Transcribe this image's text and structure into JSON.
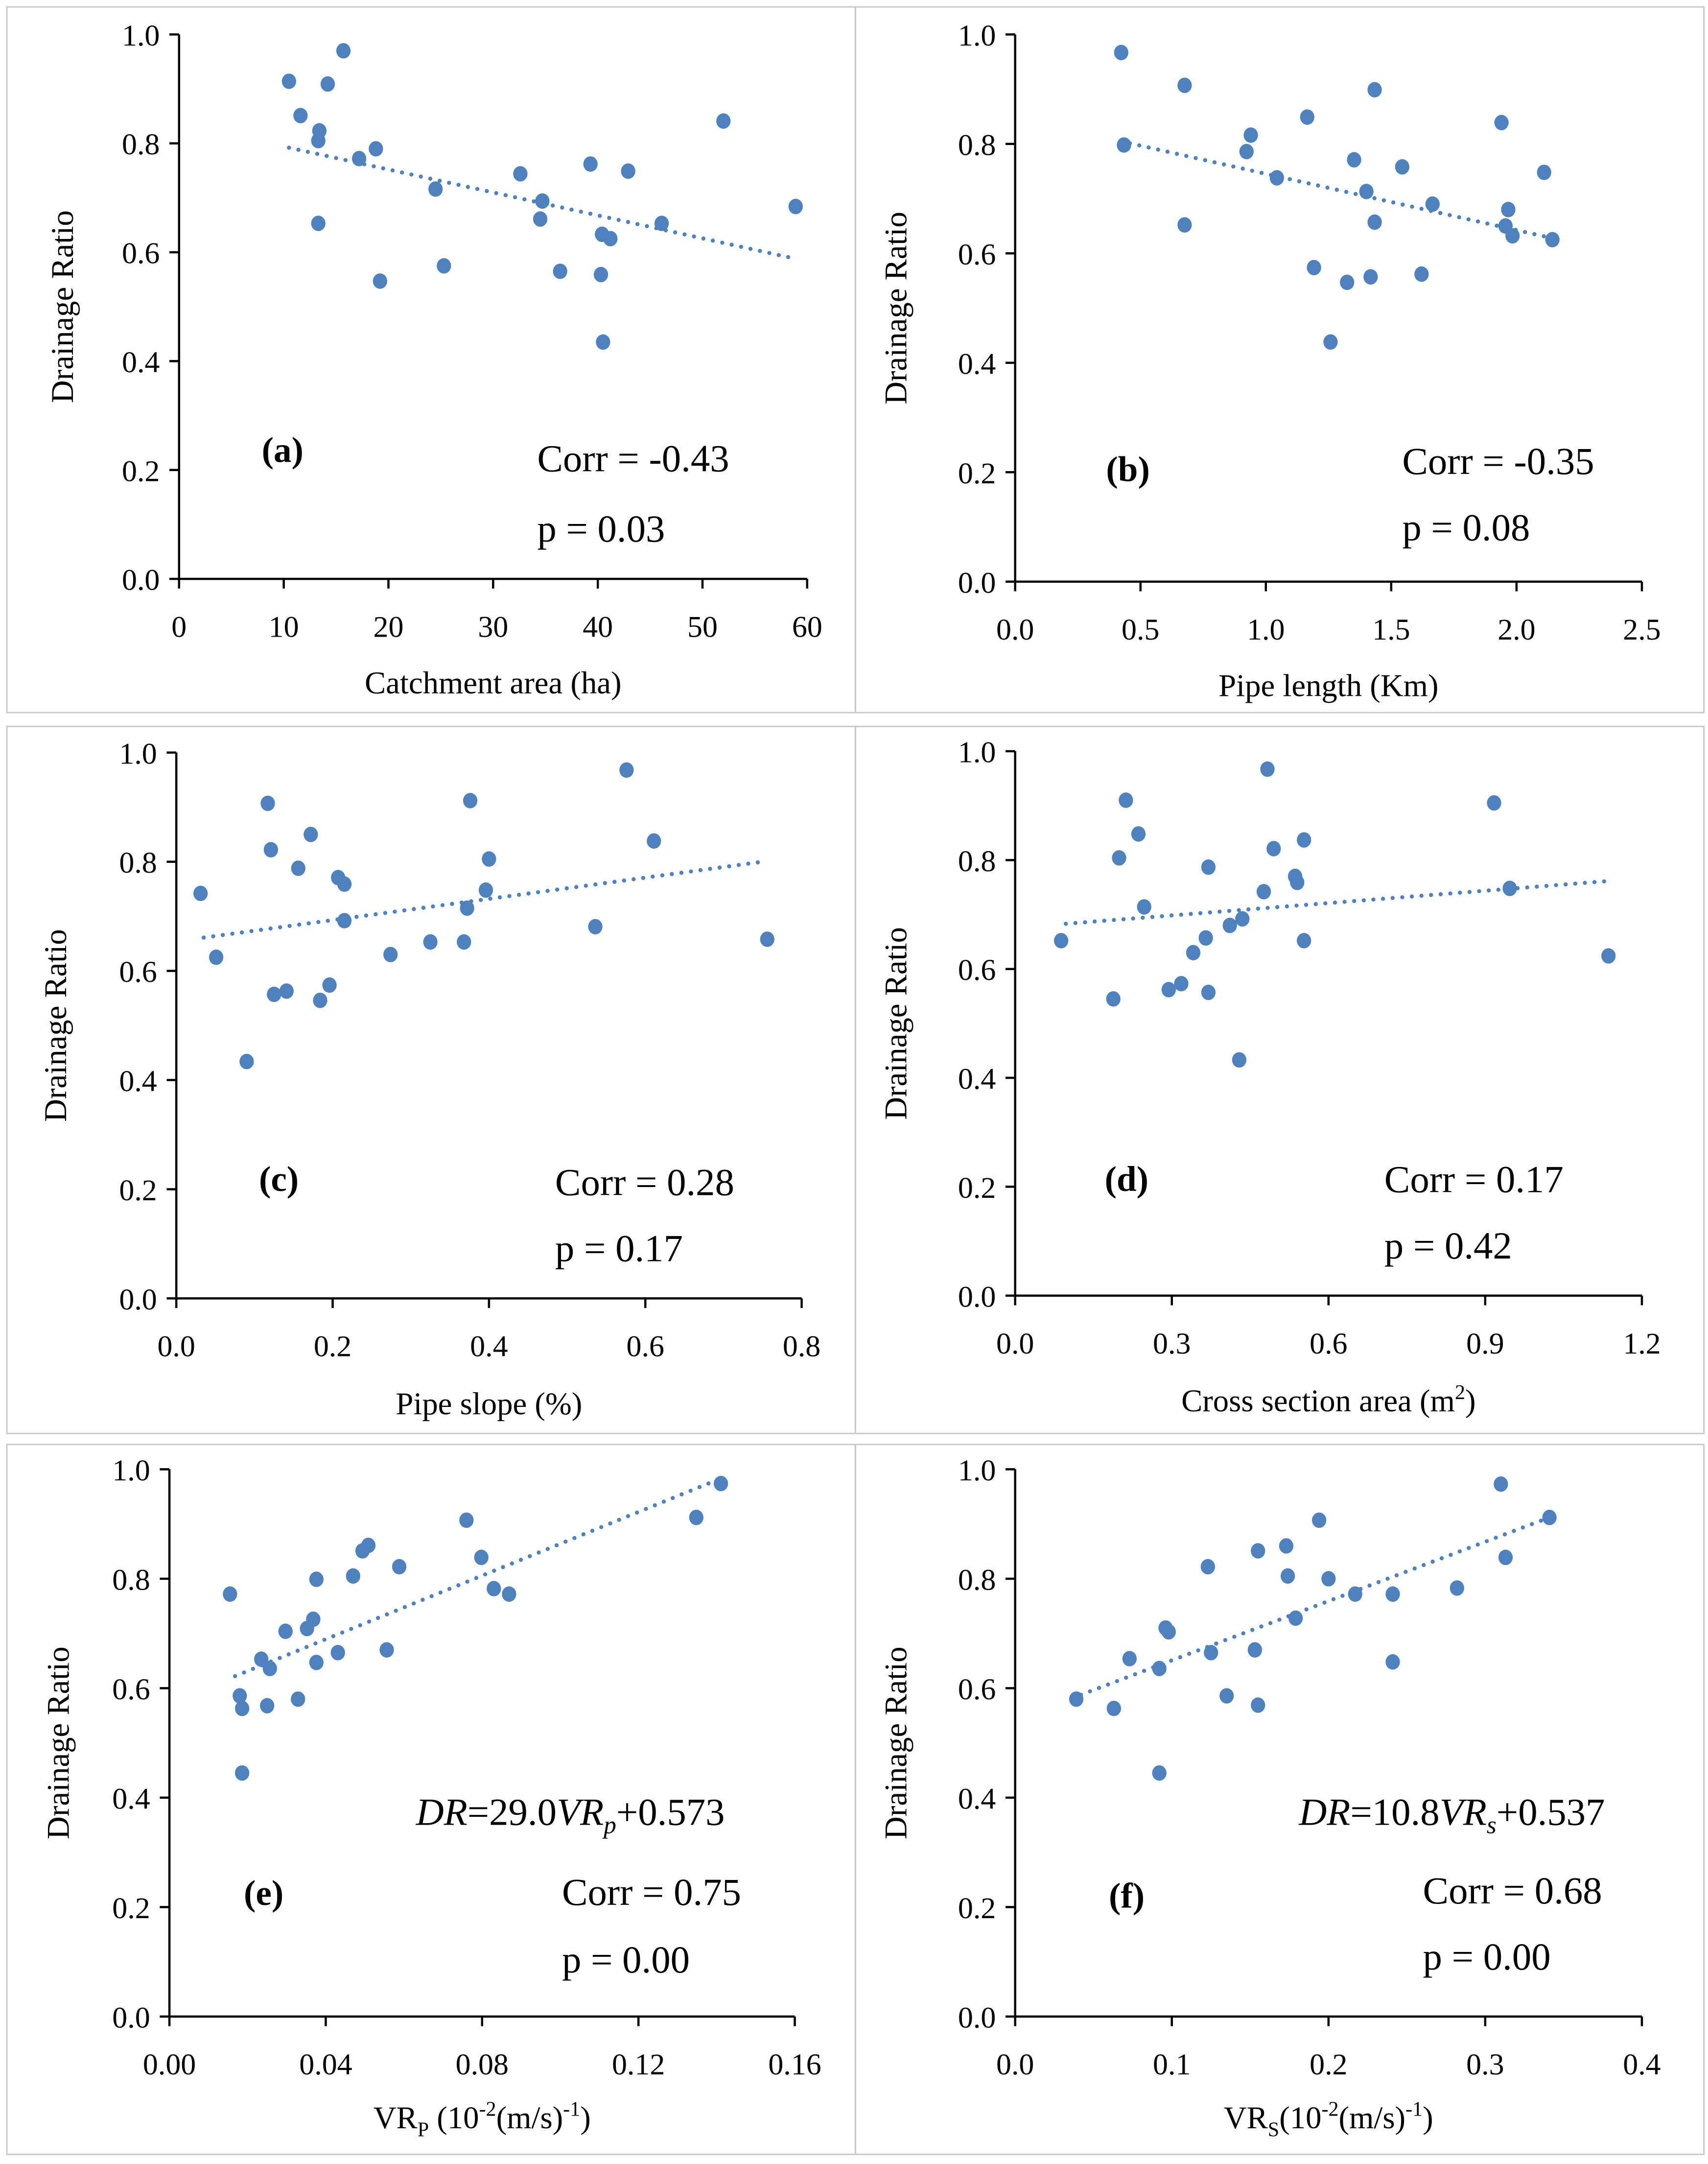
{
  "chart_data": [
    {
      "id": "a",
      "type": "scatter",
      "panel_label": "(a)",
      "xlabel": [
        {
          "t": "Catchment area (ha)"
        }
      ],
      "ylabel": "Drainage  Ratio",
      "xlim": [
        0,
        60
      ],
      "ylim": [
        0,
        1.0
      ],
      "xticks": [
        "0",
        "10",
        "20",
        "30",
        "40",
        "50",
        "60"
      ],
      "yticks": [
        "0.0",
        "0.2",
        "0.4",
        "0.6",
        "0.8",
        "1.0"
      ],
      "corr": "Corr = -0.43",
      "p": "p = 0.03",
      "points": [
        [
          10.5,
          0.914
        ],
        [
          15.7,
          0.97
        ],
        [
          11.6,
          0.851
        ],
        [
          14.2,
          0.909
        ],
        [
          13.4,
          0.823
        ],
        [
          13.3,
          0.805
        ],
        [
          17.2,
          0.772
        ],
        [
          18.8,
          0.79
        ],
        [
          13.3,
          0.653
        ],
        [
          19.2,
          0.547
        ],
        [
          24.5,
          0.716
        ],
        [
          25.3,
          0.575
        ],
        [
          32.6,
          0.744
        ],
        [
          34.7,
          0.694
        ],
        [
          34.5,
          0.661
        ],
        [
          36.4,
          0.565
        ],
        [
          39.3,
          0.762
        ],
        [
          42.9,
          0.749
        ],
        [
          40.4,
          0.633
        ],
        [
          41.2,
          0.625
        ],
        [
          40.3,
          0.559
        ],
        [
          40.5,
          0.435
        ],
        [
          46.1,
          0.653
        ],
        [
          52.0,
          0.841
        ],
        [
          58.9,
          0.684
        ]
      ],
      "trendline": [
        [
          10.5,
          0.792
        ],
        [
          58.9,
          0.588
        ]
      ]
    },
    {
      "id": "b",
      "type": "scatter",
      "panel_label": "(b)",
      "xlabel": [
        {
          "t": "Pipe length (Km)"
        }
      ],
      "ylabel": "Drainage  Ratio",
      "xlim": [
        0,
        2.5
      ],
      "ylim": [
        0,
        1.0
      ],
      "xticks": [
        "0.0",
        "0.5",
        "1.0",
        "1.5",
        "2.0",
        "2.5"
      ],
      "yticks": [
        "0.0",
        "0.2",
        "0.4",
        "0.6",
        "0.8",
        "1.0"
      ],
      "corr": "Corr = -0.35",
      "p": "p = 0.08",
      "points": [
        [
          0.423,
          0.967
        ],
        [
          0.434,
          0.798
        ],
        [
          0.676,
          0.907
        ],
        [
          0.676,
          0.652
        ],
        [
          0.94,
          0.816
        ],
        [
          0.923,
          0.786
        ],
        [
          1.044,
          0.738
        ],
        [
          1.165,
          0.849
        ],
        [
          1.192,
          0.574
        ],
        [
          1.258,
          0.438
        ],
        [
          1.324,
          0.547
        ],
        [
          1.352,
          0.771
        ],
        [
          1.401,
          0.713
        ],
        [
          1.434,
          0.899
        ],
        [
          1.434,
          0.657
        ],
        [
          1.418,
          0.557
        ],
        [
          1.544,
          0.758
        ],
        [
          1.665,
          0.69
        ],
        [
          1.621,
          0.562
        ],
        [
          1.94,
          0.839
        ],
        [
          1.967,
          0.68
        ],
        [
          1.956,
          0.65
        ],
        [
          1.984,
          0.632
        ],
        [
          2.11,
          0.748
        ],
        [
          2.143,
          0.625
        ]
      ],
      "trendline": [
        [
          0.42,
          0.805
        ],
        [
          2.14,
          0.628
        ]
      ]
    },
    {
      "id": "c",
      "type": "scatter",
      "panel_label": "(c)",
      "xlabel": [
        {
          "t": "Pipe slope (%)"
        }
      ],
      "ylabel": "Drainage  Ratio",
      "xlim": [
        0,
        0.8
      ],
      "ylim": [
        0,
        1.0
      ],
      "xticks": [
        "0.0",
        "0.2",
        "0.4",
        "0.6",
        "0.8"
      ],
      "yticks": [
        "0.0",
        "0.2",
        "0.4",
        "0.6",
        "0.8",
        "1.0"
      ],
      "corr": "Corr = 0.28",
      "p": "p = 0.17",
      "points": [
        [
          0.031,
          0.742
        ],
        [
          0.051,
          0.625
        ],
        [
          0.09,
          0.434
        ],
        [
          0.117,
          0.907
        ],
        [
          0.121,
          0.822
        ],
        [
          0.125,
          0.557
        ],
        [
          0.141,
          0.563
        ],
        [
          0.156,
          0.788
        ],
        [
          0.172,
          0.85
        ],
        [
          0.184,
          0.546
        ],
        [
          0.196,
          0.574
        ],
        [
          0.207,
          0.771
        ],
        [
          0.215,
          0.759
        ],
        [
          0.215,
          0.692
        ],
        [
          0.274,
          0.63
        ],
        [
          0.325,
          0.653
        ],
        [
          0.368,
          0.653
        ],
        [
          0.372,
          0.715
        ],
        [
          0.376,
          0.912
        ],
        [
          0.396,
          0.748
        ],
        [
          0.4,
          0.805
        ],
        [
          0.536,
          0.681
        ],
        [
          0.576,
          0.968
        ],
        [
          0.611,
          0.838
        ],
        [
          0.756,
          0.658
        ]
      ],
      "trendline": [
        [
          0.035,
          0.661
        ],
        [
          0.755,
          0.801
        ]
      ]
    },
    {
      "id": "d",
      "type": "scatter",
      "panel_label": "(d)",
      "xlabel": [
        {
          "t": "Cross section area (m"
        },
        {
          "t": "2",
          "sup": true
        },
        {
          "t": ")"
        }
      ],
      "ylabel": "Drainage  Ratio",
      "xlim": [
        0,
        1.2
      ],
      "ylim": [
        0,
        1.0
      ],
      "xticks": [
        "0.0",
        "0.3",
        "0.6",
        "0.9",
        "1.2"
      ],
      "yticks": [
        "0.0",
        "0.2",
        "0.4",
        "0.6",
        "0.8",
        "1.0"
      ],
      "corr": "Corr = 0.17",
      "p": "p = 0.42",
      "points": [
        [
          0.088,
          0.652
        ],
        [
          0.188,
          0.545
        ],
        [
          0.199,
          0.804
        ],
        [
          0.212,
          0.91
        ],
        [
          0.236,
          0.848
        ],
        [
          0.247,
          0.714
        ],
        [
          0.294,
          0.562
        ],
        [
          0.318,
          0.573
        ],
        [
          0.341,
          0.63
        ],
        [
          0.365,
          0.657
        ],
        [
          0.37,
          0.787
        ],
        [
          0.37,
          0.557
        ],
        [
          0.411,
          0.68
        ],
        [
          0.429,
          0.433
        ],
        [
          0.435,
          0.692
        ],
        [
          0.476,
          0.742
        ],
        [
          0.483,
          0.967
        ],
        [
          0.495,
          0.821
        ],
        [
          0.536,
          0.77
        ],
        [
          0.54,
          0.759
        ],
        [
          0.553,
          0.837
        ],
        [
          0.553,
          0.652
        ],
        [
          0.917,
          0.905
        ],
        [
          0.947,
          0.748
        ],
        [
          1.136,
          0.624
        ]
      ],
      "trendline": [
        [
          0.097,
          0.683
        ],
        [
          1.129,
          0.761
        ]
      ]
    },
    {
      "id": "e",
      "type": "scatter",
      "panel_label": "(e)",
      "xlabel": [
        {
          "t": "VR"
        },
        {
          "t": "P",
          "sub": true
        },
        {
          "t": " (10"
        },
        {
          "t": "-2",
          "sup": true
        },
        {
          "t": "(m/s)"
        },
        {
          "t": "-1",
          "sup": true
        },
        {
          "t": ")"
        }
      ],
      "ylabel": "Drainage  Ratio",
      "xlim": [
        0,
        0.16
      ],
      "ylim": [
        0,
        1.0
      ],
      "xticks": [
        "0.00",
        "0.04",
        "0.08",
        "0.12",
        "0.16"
      ],
      "yticks": [
        "0.0",
        "0.2",
        "0.4",
        "0.6",
        "0.8",
        "1.0"
      ],
      "equation": [
        {
          "t": "DR",
          "i": true
        },
        {
          "t": "=29.0"
        },
        {
          "t": "VR",
          "i": true
        },
        {
          "t": "p",
          "i": true,
          "sub": true
        },
        {
          "t": "+0.573"
        }
      ],
      "corr": "Corr = 0.75",
      "p": "p = 0.00",
      "points": [
        [
          0.0155,
          0.772
        ],
        [
          0.018,
          0.586
        ],
        [
          0.0186,
          0.563
        ],
        [
          0.0186,
          0.445
        ],
        [
          0.0235,
          0.653
        ],
        [
          0.0257,
          0.636
        ],
        [
          0.025,
          0.568
        ],
        [
          0.0297,
          0.704
        ],
        [
          0.0329,
          0.58
        ],
        [
          0.0352,
          0.709
        ],
        [
          0.0368,
          0.726
        ],
        [
          0.0376,
          0.799
        ],
        [
          0.0376,
          0.647
        ],
        [
          0.0431,
          0.665
        ],
        [
          0.047,
          0.805
        ],
        [
          0.0494,
          0.851
        ],
        [
          0.0509,
          0.861
        ],
        [
          0.0556,
          0.67
        ],
        [
          0.0588,
          0.822
        ],
        [
          0.076,
          0.907
        ],
        [
          0.0798,
          0.839
        ],
        [
          0.083,
          0.782
        ],
        [
          0.0869,
          0.772
        ],
        [
          0.1348,
          0.912
        ],
        [
          0.1411,
          0.974
        ]
      ],
      "trendline": [
        [
          0.0168,
          0.622
        ],
        [
          0.142,
          0.986
        ]
      ]
    },
    {
      "id": "f",
      "type": "scatter",
      "panel_label": "(f)",
      "xlabel": [
        {
          "t": "VR"
        },
        {
          "t": "S",
          "sub": true
        },
        {
          "t": "(10"
        },
        {
          "t": "-2",
          "sup": true
        },
        {
          "t": "(m/s)"
        },
        {
          "t": "-1",
          "sup": true
        },
        {
          "t": ")"
        }
      ],
      "ylabel": "Drainage  Ratio",
      "xlim": [
        0,
        0.4
      ],
      "ylim": [
        0,
        1.0
      ],
      "xticks": [
        "0.0",
        "0.1",
        "0.2",
        "0.3",
        "0.4"
      ],
      "yticks": [
        "0.0",
        "0.2",
        "0.4",
        "0.6",
        "0.8",
        "1.0"
      ],
      "equation": [
        {
          "t": "DR",
          "i": true
        },
        {
          "t": "=10.8"
        },
        {
          "t": "VR",
          "i": true
        },
        {
          "t": "s",
          "i": true,
          "sub": true
        },
        {
          "t": "+0.537"
        }
      ],
      "corr": "Corr = 0.68",
      "p": "p = 0.00",
      "points": [
        [
          0.039,
          0.58
        ],
        [
          0.063,
          0.563
        ],
        [
          0.073,
          0.654
        ],
        [
          0.092,
          0.636
        ],
        [
          0.092,
          0.445
        ],
        [
          0.096,
          0.71
        ],
        [
          0.098,
          0.703
        ],
        [
          0.123,
          0.822
        ],
        [
          0.125,
          0.665
        ],
        [
          0.135,
          0.586
        ],
        [
          0.153,
          0.67
        ],
        [
          0.155,
          0.851
        ],
        [
          0.155,
          0.569
        ],
        [
          0.173,
          0.86
        ],
        [
          0.174,
          0.805
        ],
        [
          0.179,
          0.728
        ],
        [
          0.194,
          0.907
        ],
        [
          0.2,
          0.8
        ],
        [
          0.217,
          0.772
        ],
        [
          0.241,
          0.772
        ],
        [
          0.241,
          0.648
        ],
        [
          0.282,
          0.783
        ],
        [
          0.31,
          0.973
        ],
        [
          0.313,
          0.839
        ],
        [
          0.341,
          0.912
        ]
      ],
      "trendline": [
        [
          0.042,
          0.588
        ],
        [
          0.341,
          0.912
        ]
      ]
    }
  ],
  "colors": {
    "marker": "#4f81bd",
    "trend": "#4f81bd",
    "axis": "#000000",
    "panel_border": "#c8c8c8"
  }
}
